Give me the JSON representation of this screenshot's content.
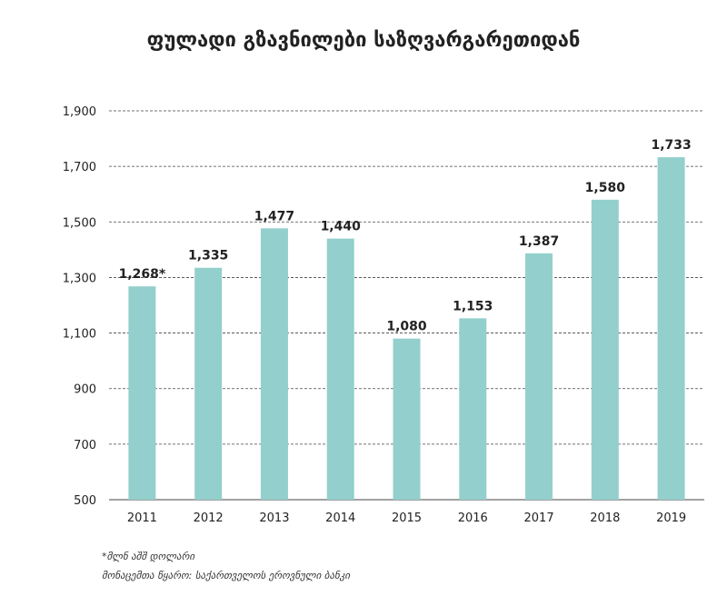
{
  "chart_data": {
    "type": "bar",
    "title": "ფულადი გზავნილები საზღვარგარეთიდან",
    "categories": [
      "2011",
      "2012",
      "2013",
      "2014",
      "2015",
      "2016",
      "2017",
      "2018",
      "2019"
    ],
    "values": [
      1268,
      1335,
      1477,
      1440,
      1080,
      1153,
      1387,
      1580,
      1733
    ],
    "value_labels": [
      "1,268*",
      "1,335",
      "1,477",
      "1,440",
      "1,080",
      "1,153",
      "1,387",
      "1,580",
      "1,733"
    ],
    "ylim": [
      500,
      1900
    ],
    "yticks": [
      500,
      700,
      900,
      1100,
      1300,
      1500,
      1700,
      1900
    ],
    "ytick_labels": [
      "500",
      "700",
      "900",
      "1,100",
      "1,300",
      "1,500",
      "1,700",
      "1,900"
    ],
    "grid": true,
    "bar_color": "#93cfcc",
    "grid_color": "#444444"
  },
  "footnotes": {
    "unit": "*მლნ აშშ დოლარი",
    "source": "მონაცემთა წყარო: საქართველოს ეროვნული ბანკი"
  }
}
